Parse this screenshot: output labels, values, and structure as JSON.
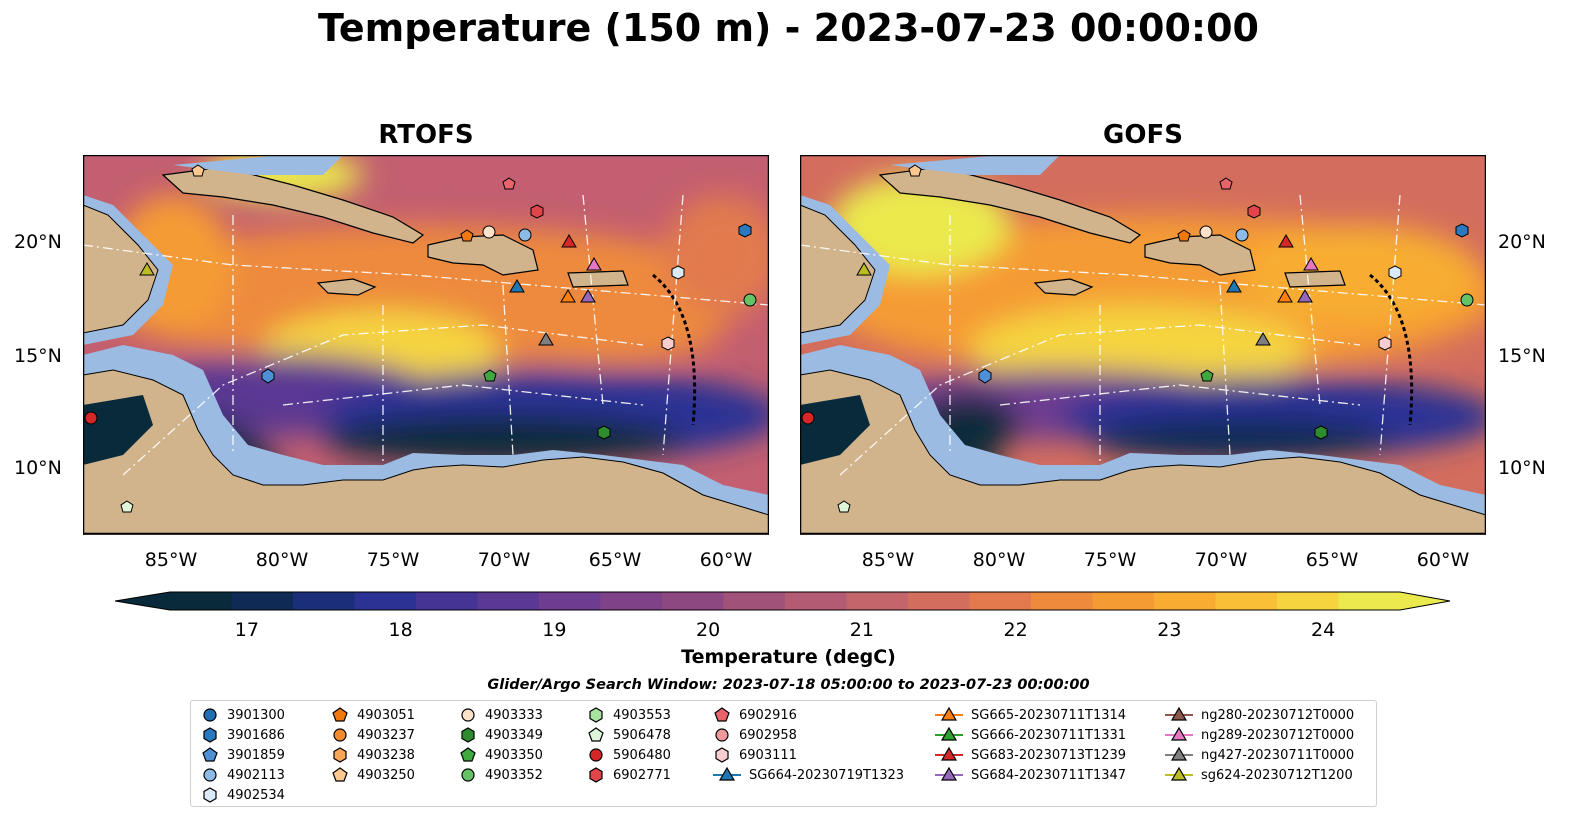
{
  "figure": {
    "title": "Temperature (150 m) - 2023-07-23 00:00:00"
  },
  "panels": [
    {
      "id": "rtofs",
      "title": "RTOFS"
    },
    {
      "id": "gofs",
      "title": "GOFS"
    }
  ],
  "axes": {
    "lat_labels": [
      "20°N",
      "15°N",
      "10°N"
    ],
    "lon_labels": [
      "85°W",
      "80°W",
      "75°W",
      "70°W",
      "65°W",
      "60°W"
    ],
    "lat_range": [
      7,
      24
    ],
    "lon_range": [
      -89,
      -58
    ]
  },
  "colorbar": {
    "label": "Temperature (degC)",
    "ticks": [
      "17",
      "18",
      "19",
      "20",
      "21",
      "22",
      "23",
      "24"
    ],
    "range": [
      16.5,
      24.5
    ],
    "colors": [
      "#082a3a",
      "#0f2a55",
      "#1b2e7a",
      "#2c3194",
      "#453493",
      "#5a3893",
      "#6e3d91",
      "#7f4289",
      "#8e4881",
      "#a05279",
      "#b35b73",
      "#c4646b",
      "#d36d5e",
      "#e27a4d",
      "#ee8a3c",
      "#f59b34",
      "#f8ad32",
      "#f9c037",
      "#f5d43f",
      "#eaea4e"
    ]
  },
  "search_window": "Glider/Argo Search Window: 2023-07-18 05:00:00 to 2023-07-23 00:00:00",
  "legend": {
    "columns": [
      [
        {
          "label": "3901300",
          "marker": "circle",
          "color": "#1f6fb4"
        },
        {
          "label": "3901686",
          "marker": "hexagon",
          "color": "#2a78bf"
        },
        {
          "label": "3901859",
          "marker": "pentagon",
          "color": "#4f8fd6"
        },
        {
          "label": "4902113",
          "marker": "circle",
          "color": "#8dbbe6"
        },
        {
          "label": "4902534",
          "marker": "hexagon",
          "color": "#dbeaf8"
        }
      ],
      [
        {
          "label": "4903051",
          "marker": "pentagon",
          "color": "#f0780f"
        },
        {
          "label": "4903237",
          "marker": "circle",
          "color": "#f38a2e"
        },
        {
          "label": "4903238",
          "marker": "hexagon",
          "color": "#f7a556"
        },
        {
          "label": "4903250",
          "marker": "pentagon",
          "color": "#fbc88f"
        }
      ],
      [
        {
          "label": "4903333",
          "marker": "circle",
          "color": "#fde2c9"
        },
        {
          "label": "4903349",
          "marker": "hexagon",
          "color": "#2e8b2e"
        },
        {
          "label": "4903350",
          "marker": "pentagon",
          "color": "#3fa83f"
        },
        {
          "label": "4903352",
          "marker": "circle",
          "color": "#66c266"
        }
      ],
      [
        {
          "label": "4903553",
          "marker": "hexagon",
          "color": "#a8e3a0"
        },
        {
          "label": "5906478",
          "marker": "pentagon",
          "color": "#dff7d8"
        },
        {
          "label": "5906480",
          "marker": "circle",
          "color": "#d62728"
        },
        {
          "label": "6902771",
          "marker": "hexagon",
          "color": "#e0454a"
        }
      ],
      [
        {
          "label": "6902916",
          "marker": "pentagon",
          "color": "#e8646a"
        },
        {
          "label": "6902958",
          "marker": "circle",
          "color": "#f0999b"
        },
        {
          "label": "6903111",
          "marker": "hexagon",
          "color": "#f9cdd0"
        },
        {
          "label": "SG664-20230719T1323",
          "marker": "triangle-line",
          "color": "#1f77b4"
        }
      ],
      [
        {
          "label": "SG665-20230711T1314",
          "marker": "triangle-line",
          "color": "#ff7f0e"
        },
        {
          "label": "SG666-20230711T1331",
          "marker": "triangle-line",
          "color": "#2ca02c"
        },
        {
          "label": "SG683-20230713T1239",
          "marker": "triangle-line",
          "color": "#d62728"
        },
        {
          "label": "SG684-20230711T1347",
          "marker": "triangle-line",
          "color": "#9467bd"
        }
      ],
      [
        {
          "label": "ng280-20230712T0000",
          "marker": "triangle-line",
          "color": "#8c564b"
        },
        {
          "label": "ng289-20230712T0000",
          "marker": "triangle-line",
          "color": "#e377c2"
        },
        {
          "label": "ng427-20230711T0000",
          "marker": "triangle-line",
          "color": "#7f7f7f"
        },
        {
          "label": "sg624-20230712T1200",
          "marker": "triangle-line",
          "color": "#bcbd22"
        }
      ]
    ]
  },
  "map_colors": {
    "land": "#d2b48c",
    "shelf": "#9bbbe3",
    "coast": "#000000",
    "sections": "#ffffff"
  }
}
